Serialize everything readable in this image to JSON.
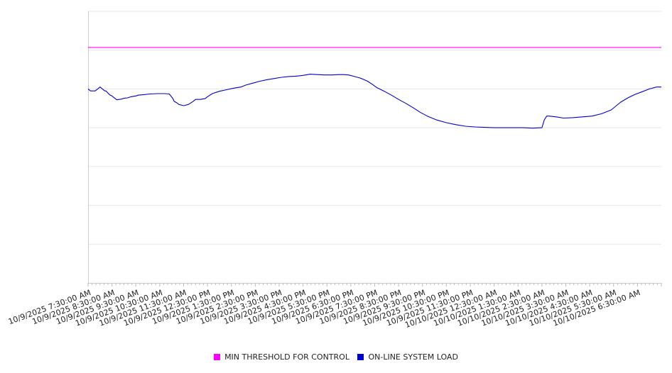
{
  "chart_data": {
    "type": "line",
    "x_labels": [
      "10/9/2025 7:30:00 AM",
      "10/9/2025 8:30:00 AM",
      "10/9/2025 9:30:00 AM",
      "10/9/2025 10:30:00 AM",
      "10/9/2025 11:30:00 AM",
      "10/9/2025 12:30:00 PM",
      "10/9/2025 1:30:00 PM",
      "10/9/2025 2:30:00 PM",
      "10/9/2025 3:30:00 PM",
      "10/9/2025 4:30:00 PM",
      "10/9/2025 5:30:00 PM",
      "10/9/2025 6:30:00 PM",
      "10/9/2025 7:30:00 PM",
      "10/9/2025 8:30:00 PM",
      "10/9/2025 9:30:00 PM",
      "10/9/2025 10:30:00 PM",
      "10/9/2025 11:30:00 PM",
      "10/10/2025 12:30:00 AM",
      "10/10/2025 1:30:00 AM",
      "10/10/2025 2:30:00 AM",
      "10/10/2025 3:30:00 AM",
      "10/10/2025 4:30:00 AM",
      "10/10/2025 5:30:00 AM",
      "10/10/2025 6:30:00 AM"
    ],
    "x_range_hours": [
      0,
      24
    ],
    "ylim": [
      0,
      7
    ],
    "gridlines": 7,
    "grid": true,
    "legend_position": "bottom",
    "series": [
      {
        "name": "MIN THRESHOLD FOR CONTROL",
        "color": "#ff00ff",
        "x": [
          0,
          24
        ],
        "y": [
          6.07,
          6.07
        ]
      },
      {
        "name": "ON-LINE SYSTEM LOAD",
        "color": "#0000cc",
        "x": [
          0,
          0.1,
          0.3,
          0.5,
          0.7,
          0.75,
          0.9,
          1.0,
          1.2,
          1.4,
          1.5,
          1.65,
          1.8,
          2.0,
          2.1,
          2.3,
          2.6,
          2.9,
          3.2,
          3.4,
          3.55,
          3.6,
          3.7,
          3.8,
          4.0,
          4.2,
          4.4,
          4.5,
          4.7,
          4.9,
          5.0,
          5.2,
          5.5,
          5.8,
          6.1,
          6.4,
          6.6,
          6.9,
          7.2,
          7.5,
          7.8,
          8.1,
          8.4,
          8.7,
          9.0,
          9.3,
          9.6,
          9.9,
          10.2,
          10.5,
          10.7,
          10.9,
          11.1,
          11.4,
          11.7,
          11.9,
          12.1,
          12.4,
          12.7,
          13.0,
          13.3,
          13.6,
          13.9,
          14.2,
          14.6,
          15.0,
          15.4,
          15.8,
          16.2,
          16.6,
          17.0,
          17.4,
          17.8,
          18.2,
          18.6,
          19.0,
          19.1,
          19.2,
          19.3,
          19.6,
          19.9,
          20.3,
          20.7,
          21.1,
          21.5,
          21.9,
          22.1,
          22.3,
          22.6,
          22.9,
          23.2,
          23.5,
          23.8,
          24.0
        ],
        "y": [
          5.0,
          4.95,
          4.95,
          5.05,
          4.95,
          4.95,
          4.85,
          4.82,
          4.72,
          4.74,
          4.76,
          4.77,
          4.8,
          4.82,
          4.84,
          4.85,
          4.87,
          4.88,
          4.88,
          4.87,
          4.75,
          4.68,
          4.65,
          4.6,
          4.57,
          4.6,
          4.68,
          4.73,
          4.73,
          4.75,
          4.8,
          4.88,
          4.94,
          4.98,
          5.02,
          5.05,
          5.1,
          5.15,
          5.2,
          5.24,
          5.27,
          5.3,
          5.32,
          5.33,
          5.35,
          5.38,
          5.37,
          5.36,
          5.36,
          5.37,
          5.37,
          5.36,
          5.33,
          5.28,
          5.2,
          5.12,
          5.03,
          4.94,
          4.84,
          4.73,
          4.63,
          4.52,
          4.4,
          4.3,
          4.2,
          4.13,
          4.08,
          4.04,
          4.02,
          4.01,
          4.0,
          4.0,
          4.0,
          4.0,
          3.99,
          4.0,
          4.2,
          4.3,
          4.3,
          4.28,
          4.25,
          4.26,
          4.28,
          4.3,
          4.36,
          4.46,
          4.56,
          4.66,
          4.77,
          4.86,
          4.93,
          5.0,
          5.05,
          5.05
        ]
      }
    ]
  }
}
